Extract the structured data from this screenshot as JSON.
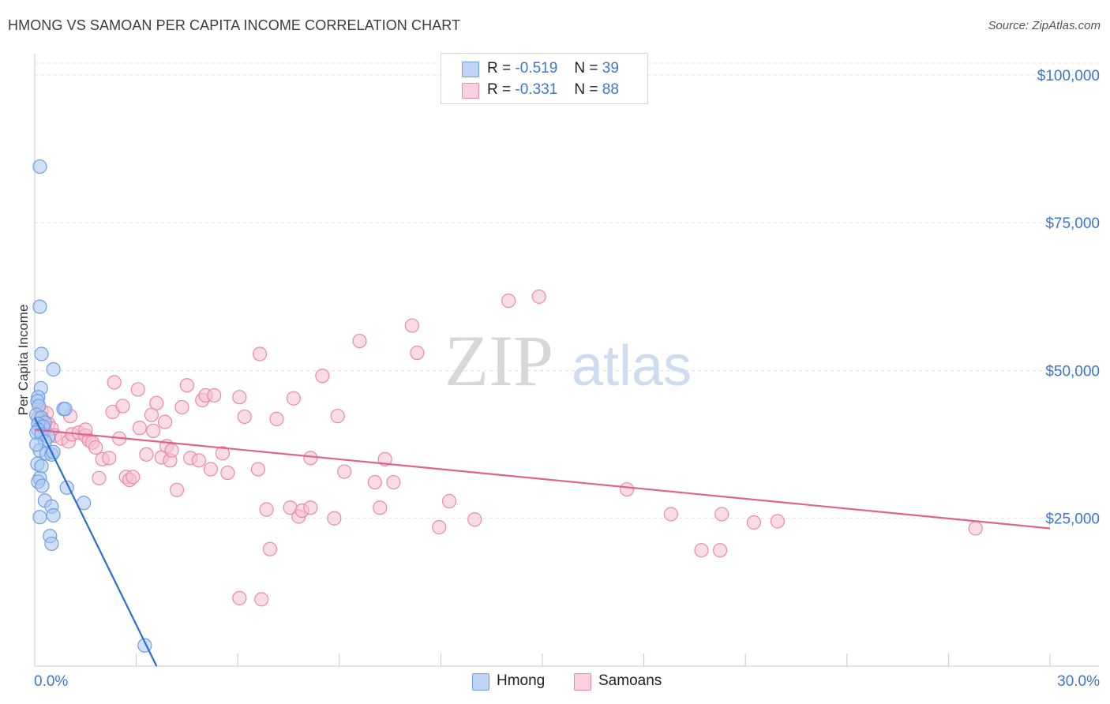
{
  "title": "HMONG VS SAMOAN PER CAPITA INCOME CORRELATION CHART",
  "source": "Source: ZipAtlas.com",
  "watermark": {
    "zip": "ZIP",
    "atlas": "atlas"
  },
  "legend": {
    "hmong": {
      "r_label": "R =",
      "r_value": "-0.519",
      "n_label": "N =",
      "n_value": "39"
    },
    "samoans": {
      "r_label": "R =",
      "r_value": "-0.331",
      "n_label": "N =",
      "n_value": "88"
    }
  },
  "bottom_legend": {
    "hmong": "Hmong",
    "samoans": "Samoans"
  },
  "colors": {
    "hmong_fill": "#a9c8f0",
    "hmong_stroke": "#6d9fe0",
    "hmong_line": "#2a6fd0",
    "samoan_fill": "#f6bfd2",
    "samoan_stroke": "#ea88aa",
    "samoan_line": "#e0628f",
    "axis_text": "#3d76cc",
    "grid": "#e3e3e3"
  },
  "chart_data": {
    "type": "scatter",
    "title": "HMONG VS SAMOAN PER CAPITA INCOME CORRELATION CHART",
    "xlabel": "",
    "ylabel": "Per Capita Income",
    "xlim": [
      0,
      30
    ],
    "ylim": [
      0,
      102000
    ],
    "x_tick_labels": [
      "0.0%",
      "30.0%"
    ],
    "y_ticks": [
      25000,
      50000,
      75000,
      100000
    ],
    "y_tick_labels": [
      "$25,000",
      "$50,000",
      "$75,000",
      "$100,000"
    ],
    "series": [
      {
        "name": "Hmong",
        "r": -0.519,
        "n": 39,
        "trend": {
          "x": [
            0.0,
            3.6
          ],
          "y": [
            42000,
            0
          ]
        },
        "points": [
          {
            "x": 0.15,
            "y": 84500
          },
          {
            "x": 0.15,
            "y": 60800
          },
          {
            "x": 0.2,
            "y": 52800
          },
          {
            "x": 0.55,
            "y": 50200
          },
          {
            "x": 0.18,
            "y": 47000
          },
          {
            "x": 0.1,
            "y": 45500
          },
          {
            "x": 0.08,
            "y": 44800
          },
          {
            "x": 0.12,
            "y": 44000
          },
          {
            "x": 0.85,
            "y": 43500
          },
          {
            "x": 0.9,
            "y": 43500
          },
          {
            "x": 0.05,
            "y": 42500
          },
          {
            "x": 0.2,
            "y": 42000
          },
          {
            "x": 0.3,
            "y": 41200
          },
          {
            "x": 0.1,
            "y": 41000
          },
          {
            "x": 0.25,
            "y": 40500
          },
          {
            "x": 0.1,
            "y": 40000
          },
          {
            "x": 0.05,
            "y": 39500
          },
          {
            "x": 0.2,
            "y": 39200
          },
          {
            "x": 0.4,
            "y": 38800
          },
          {
            "x": 0.3,
            "y": 38000
          },
          {
            "x": 0.15,
            "y": 36500
          },
          {
            "x": 0.35,
            "y": 36000
          },
          {
            "x": 0.5,
            "y": 35800
          },
          {
            "x": 0.55,
            "y": 36200
          },
          {
            "x": 0.08,
            "y": 34200
          },
          {
            "x": 0.2,
            "y": 33800
          },
          {
            "x": 0.15,
            "y": 31800
          },
          {
            "x": 0.1,
            "y": 31200
          },
          {
            "x": 0.22,
            "y": 30500
          },
          {
            "x": 0.95,
            "y": 30200
          },
          {
            "x": 0.3,
            "y": 28000
          },
          {
            "x": 0.5,
            "y": 27000
          },
          {
            "x": 1.45,
            "y": 27600
          },
          {
            "x": 0.55,
            "y": 25500
          },
          {
            "x": 0.15,
            "y": 25200
          },
          {
            "x": 0.45,
            "y": 22000
          },
          {
            "x": 0.5,
            "y": 20700
          },
          {
            "x": 3.25,
            "y": 3500
          },
          {
            "x": 0.05,
            "y": 37500
          }
        ]
      },
      {
        "name": "Samoans",
        "r": -0.331,
        "n": 88,
        "trend": {
          "x": [
            0.0,
            30.0
          ],
          "y": [
            40000,
            23300
          ]
        },
        "points": [
          {
            "x": 0.2,
            "y": 43200
          },
          {
            "x": 0.35,
            "y": 42800
          },
          {
            "x": 0.1,
            "y": 42000
          },
          {
            "x": 0.25,
            "y": 41500
          },
          {
            "x": 0.4,
            "y": 41000
          },
          {
            "x": 0.2,
            "y": 40500
          },
          {
            "x": 0.5,
            "y": 40200
          },
          {
            "x": 0.3,
            "y": 39800
          },
          {
            "x": 0.6,
            "y": 39000
          },
          {
            "x": 0.8,
            "y": 38500
          },
          {
            "x": 1.0,
            "y": 38000
          },
          {
            "x": 1.1,
            "y": 39200
          },
          {
            "x": 1.3,
            "y": 39500
          },
          {
            "x": 1.5,
            "y": 39000
          },
          {
            "x": 1.6,
            "y": 38200
          },
          {
            "x": 1.7,
            "y": 37800
          },
          {
            "x": 1.8,
            "y": 37000
          },
          {
            "x": 1.05,
            "y": 42300
          },
          {
            "x": 1.5,
            "y": 40000
          },
          {
            "x": 2.0,
            "y": 35000
          },
          {
            "x": 2.2,
            "y": 35200
          },
          {
            "x": 1.9,
            "y": 31800
          },
          {
            "x": 2.3,
            "y": 43000
          },
          {
            "x": 2.35,
            "y": 48000
          },
          {
            "x": 2.6,
            "y": 44000
          },
          {
            "x": 2.5,
            "y": 38500
          },
          {
            "x": 2.7,
            "y": 32000
          },
          {
            "x": 2.8,
            "y": 31500
          },
          {
            "x": 2.9,
            "y": 32000
          },
          {
            "x": 3.05,
            "y": 46800
          },
          {
            "x": 3.1,
            "y": 40300
          },
          {
            "x": 3.3,
            "y": 35800
          },
          {
            "x": 3.45,
            "y": 42500
          },
          {
            "x": 3.5,
            "y": 39800
          },
          {
            "x": 3.6,
            "y": 44500
          },
          {
            "x": 3.75,
            "y": 35300
          },
          {
            "x": 3.85,
            "y": 41300
          },
          {
            "x": 3.9,
            "y": 37200
          },
          {
            "x": 4.0,
            "y": 34800
          },
          {
            "x": 4.05,
            "y": 36500
          },
          {
            "x": 4.2,
            "y": 29800
          },
          {
            "x": 4.35,
            "y": 43800
          },
          {
            "x": 4.5,
            "y": 47500
          },
          {
            "x": 4.6,
            "y": 35200
          },
          {
            "x": 4.85,
            "y": 34800
          },
          {
            "x": 4.95,
            "y": 45000
          },
          {
            "x": 5.05,
            "y": 45800
          },
          {
            "x": 5.3,
            "y": 45800
          },
          {
            "x": 5.2,
            "y": 33300
          },
          {
            "x": 5.55,
            "y": 36000
          },
          {
            "x": 5.7,
            "y": 32700
          },
          {
            "x": 6.05,
            "y": 45500
          },
          {
            "x": 6.2,
            "y": 42200
          },
          {
            "x": 6.05,
            "y": 11500
          },
          {
            "x": 6.6,
            "y": 33300
          },
          {
            "x": 6.65,
            "y": 52800
          },
          {
            "x": 6.85,
            "y": 26500
          },
          {
            "x": 6.95,
            "y": 19800
          },
          {
            "x": 7.15,
            "y": 41800
          },
          {
            "x": 6.7,
            "y": 11300
          },
          {
            "x": 7.55,
            "y": 26800
          },
          {
            "x": 7.8,
            "y": 25300
          },
          {
            "x": 7.9,
            "y": 26300
          },
          {
            "x": 7.65,
            "y": 45300
          },
          {
            "x": 8.15,
            "y": 35200
          },
          {
            "x": 8.15,
            "y": 26800
          },
          {
            "x": 8.5,
            "y": 49100
          },
          {
            "x": 8.85,
            "y": 25000
          },
          {
            "x": 8.95,
            "y": 42300
          },
          {
            "x": 9.15,
            "y": 32900
          },
          {
            "x": 9.6,
            "y": 55000
          },
          {
            "x": 10.05,
            "y": 31100
          },
          {
            "x": 10.2,
            "y": 26800
          },
          {
            "x": 10.35,
            "y": 35000
          },
          {
            "x": 10.6,
            "y": 31100
          },
          {
            "x": 11.15,
            "y": 57600
          },
          {
            "x": 11.3,
            "y": 53000
          },
          {
            "x": 11.95,
            "y": 23500
          },
          {
            "x": 12.25,
            "y": 27900
          },
          {
            "x": 13.0,
            "y": 24800
          },
          {
            "x": 14.0,
            "y": 61800
          },
          {
            "x": 14.9,
            "y": 62500
          },
          {
            "x": 17.5,
            "y": 29900
          },
          {
            "x": 18.8,
            "y": 25700
          },
          {
            "x": 19.7,
            "y": 19600
          },
          {
            "x": 20.25,
            "y": 19600
          },
          {
            "x": 20.3,
            "y": 25700
          },
          {
            "x": 21.25,
            "y": 24300
          },
          {
            "x": 21.95,
            "y": 24500
          },
          {
            "x": 27.8,
            "y": 23300
          }
        ]
      }
    ]
  }
}
